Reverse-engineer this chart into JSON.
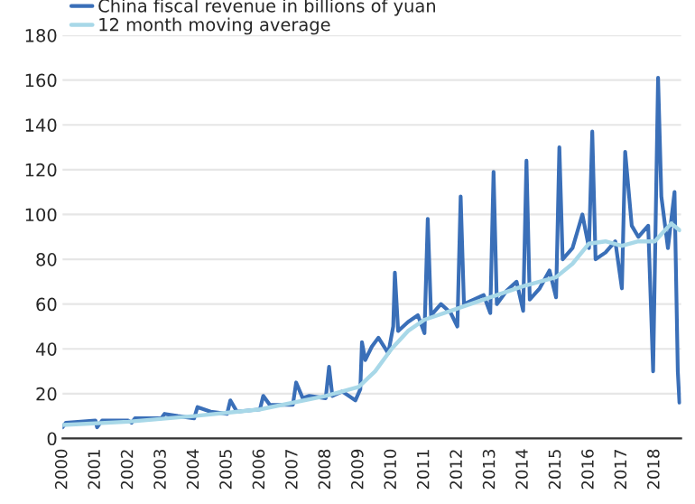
{
  "chart_data": {
    "type": "line",
    "ylim": [
      0,
      180
    ],
    "yticks": [
      0,
      20,
      40,
      60,
      80,
      100,
      120,
      140,
      160,
      180
    ],
    "xlim": [
      2000,
      2018.8
    ],
    "xticks": [
      2000,
      2001,
      2002,
      2003,
      2004,
      2005,
      2006,
      2007,
      2008,
      2009,
      2010,
      2011,
      2012,
      2013,
      2014,
      2015,
      2016,
      2017,
      2018
    ],
    "grid": "y",
    "legend": "top left",
    "series": [
      {
        "name": "China fiscal revenue in billions of yuan",
        "color": "#3a6fb8",
        "x": [
          2000.0,
          2000.1,
          2001.0,
          2001.05,
          2001.2,
          2002.0,
          2002.1,
          2002.2,
          2003.0,
          2003.1,
          2003.5,
          2004.0,
          2004.1,
          2004.5,
          2005.0,
          2005.1,
          2005.3,
          2006.0,
          2006.1,
          2006.3,
          2007.0,
          2007.1,
          2007.3,
          2007.5,
          2008.0,
          2008.1,
          2008.2,
          2008.5,
          2008.9,
          2009.05,
          2009.1,
          2009.2,
          2009.4,
          2009.6,
          2009.9,
          2010.05,
          2010.1,
          2010.2,
          2010.5,
          2010.8,
          2011.0,
          2011.1,
          2011.2,
          2011.5,
          2011.8,
          2012.0,
          2012.1,
          2012.2,
          2012.5,
          2012.8,
          2013.0,
          2013.1,
          2013.2,
          2013.5,
          2013.8,
          2014.0,
          2014.1,
          2014.2,
          2014.5,
          2014.8,
          2015.0,
          2015.1,
          2015.2,
          2015.5,
          2015.8,
          2016.0,
          2016.1,
          2016.2,
          2016.5,
          2016.8,
          2017.0,
          2017.1,
          2017.3,
          2017.5,
          2017.8,
          2017.95,
          2018.1,
          2018.2,
          2018.4,
          2018.6,
          2018.7,
          2018.75
        ],
        "values": [
          5,
          7,
          8,
          5,
          8,
          8,
          7,
          9,
          9,
          11,
          10,
          9,
          14,
          12,
          11,
          17,
          12,
          13,
          19,
          15,
          15,
          25,
          18,
          19,
          18,
          32,
          19,
          21,
          17,
          22,
          43,
          35,
          41,
          45,
          38,
          50,
          74,
          48,
          52,
          55,
          47,
          98,
          55,
          60,
          56,
          50,
          108,
          60,
          62,
          64,
          56,
          119,
          60,
          66,
          70,
          57,
          124,
          62,
          67,
          75,
          63,
          130,
          80,
          85,
          100,
          85,
          137,
          80,
          83,
          88,
          67,
          128,
          95,
          90,
          95,
          30,
          161,
          108,
          85,
          110,
          30,
          16
        ]
      },
      {
        "name": "12 month moving average",
        "color": "#a8d8e8",
        "x": [
          2000,
          2002,
          2004,
          2006,
          2008,
          2009,
          2009.5,
          2010,
          2010.5,
          2011,
          2012,
          2013,
          2014,
          2015,
          2015.5,
          2016,
          2016.5,
          2017,
          2017.5,
          2018,
          2018.5,
          2018.75
        ],
        "values": [
          6,
          7.5,
          10,
          13,
          19,
          23,
          30,
          40,
          48,
          53,
          58,
          63,
          68,
          72,
          78,
          87,
          88,
          86,
          88,
          88,
          96,
          93
        ]
      }
    ]
  }
}
